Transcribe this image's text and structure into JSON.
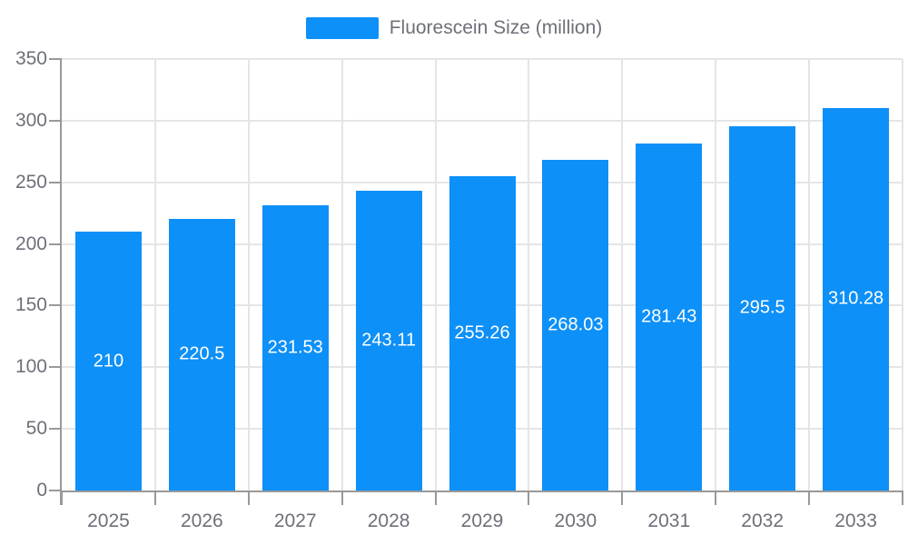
{
  "chart_data": {
    "type": "bar",
    "title": "",
    "legend": {
      "label": "Fluorescein Size (million)",
      "position": "top-center"
    },
    "categories": [
      "2025",
      "2026",
      "2027",
      "2028",
      "2029",
      "2030",
      "2031",
      "2032",
      "2033"
    ],
    "series": [
      {
        "name": "Fluorescein Size (million)",
        "values": [
          210,
          220.5,
          231.53,
          243.11,
          255.26,
          268.03,
          281.43,
          295.5,
          310.28
        ]
      }
    ],
    "value_labels_position": "inside-center",
    "xlabel": "",
    "ylabel": "",
    "ylim": [
      0,
      350
    ],
    "yticks": [
      0,
      50,
      100,
      150,
      200,
      250,
      300,
      350
    ],
    "grid": "horizontal and vertical light gridlines"
  },
  "colors": {
    "bar": "#0d90f8",
    "bar_value_text": "#ffffff",
    "axis_line": "#999999",
    "gridline": "#e5e5e5",
    "axis_text": "#6e7079",
    "legend_text": "#6e7079",
    "background": "#ffffff"
  }
}
